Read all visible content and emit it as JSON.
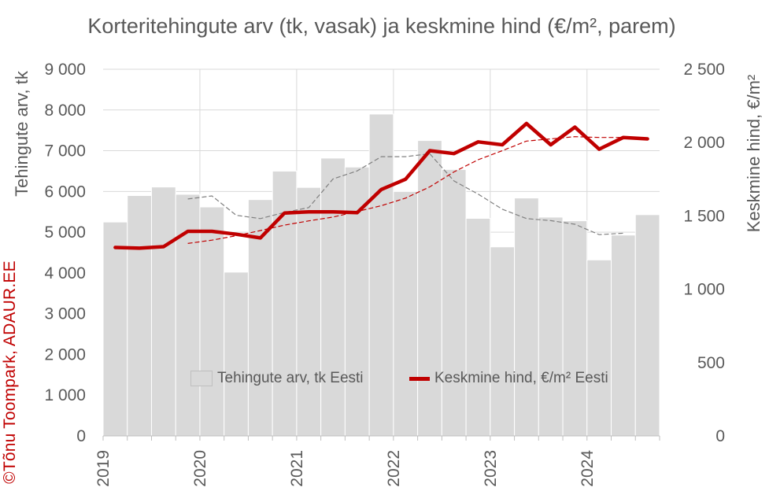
{
  "chart_data": {
    "type": "bar",
    "title": "Korteritehingute arv (tk, vasak) ja keskmine hind (€/m², parem)",
    "ylabel_left": "Tehingute arv, tk",
    "ylabel_right": "Keskmine hind, €/m²",
    "ylim_left": [
      0,
      9000
    ],
    "ylim_right": [
      0,
      2500
    ],
    "yticks_left": [
      "0",
      "1 000",
      "2 000",
      "3 000",
      "4 000",
      "5 000",
      "6 000",
      "7 000",
      "8 000",
      "9 000"
    ],
    "yticks_right": [
      "0",
      "500",
      "1 000",
      "1 500",
      "2 000",
      "2 500"
    ],
    "year_labels": [
      "2019",
      "2020",
      "2021",
      "2022",
      "2023",
      "2024"
    ],
    "grid": true,
    "legend_position": "bottom-center",
    "categories": [
      "2019 Q1",
      "2019 Q2",
      "2019 Q3",
      "2019 Q4",
      "2020 Q1",
      "2020 Q2",
      "2020 Q3",
      "2020 Q4",
      "2021 Q1",
      "2021 Q2",
      "2021 Q3",
      "2021 Q4",
      "2022 Q1",
      "2022 Q2",
      "2022 Q3",
      "2022 Q4",
      "2023 Q1",
      "2023 Q2",
      "2023 Q3",
      "2023 Q4",
      "2024 Q1",
      "2024 Q2",
      "2024 Q3"
    ],
    "series": [
      {
        "name": "Tehingute arv, tk Eesti",
        "type": "bar",
        "axis": "left",
        "color": "#d9d9d9",
        "values": [
          5250,
          5900,
          6110,
          5930,
          5620,
          4020,
          5800,
          6500,
          6100,
          6820,
          6600,
          7900,
          6000,
          7250,
          6540,
          5340,
          4640,
          5840,
          5370,
          5280,
          4320,
          4930,
          5430
        ]
      },
      {
        "name": "Keskmine hind, €/m² Eesti",
        "type": "line",
        "axis": "right",
        "color": "#c00000",
        "values": [
          1285,
          1280,
          1290,
          1395,
          1395,
          1375,
          1350,
          1520,
          1528,
          1528,
          1522,
          1680,
          1750,
          1945,
          1925,
          2005,
          1985,
          2130,
          1985,
          2105,
          1955,
          2035,
          2025
        ]
      }
    ],
    "trend_lines": [
      {
        "series": "Tehingute arv, tk Eesti",
        "axis": "left",
        "color": "#808080",
        "style": "dashed",
        "values": [
          null,
          null,
          null,
          5815,
          5890,
          5415,
          5335,
          5485,
          5605,
          6305,
          6505,
          6855,
          6855,
          6925,
          6260,
          5935,
          5565,
          5335,
          5285,
          5195,
          4940,
          4975,
          null
        ]
      },
      {
        "series": "Keskmine hind, €/m² Eesti",
        "axis": "right",
        "color": "#c00000",
        "style": "dashed",
        "values": [
          null,
          null,
          null,
          1312,
          1335,
          1365,
          1400,
          1437,
          1466,
          1492,
          1530,
          1570,
          1621,
          1698,
          1800,
          1883,
          1945,
          2010,
          2025,
          2040,
          2035,
          2035,
          null
        ]
      }
    ]
  },
  "watermark": "©Tõnu Toompark, ADAUR.EE"
}
